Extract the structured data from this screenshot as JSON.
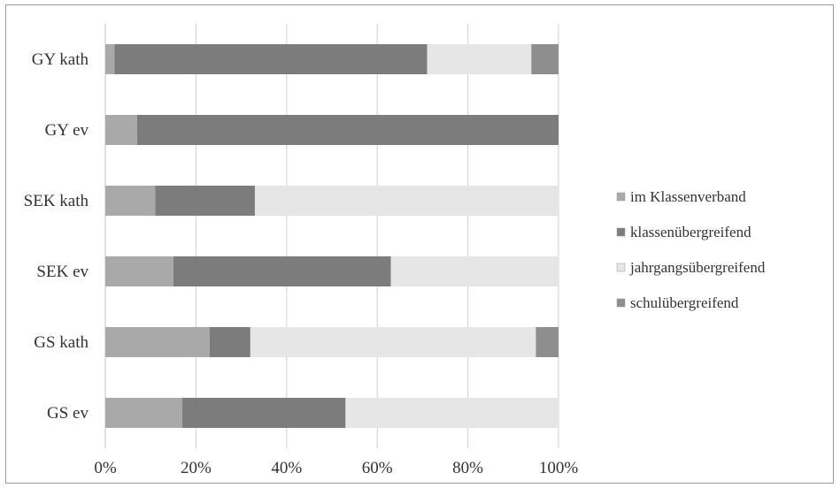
{
  "chart_data": {
    "type": "bar",
    "orientation": "horizontal",
    "stacked": "percent",
    "categories": [
      "GY kath",
      "GY ev",
      "SEK kath",
      "SEK ev",
      "GS kath",
      "GS ev"
    ],
    "series": [
      {
        "name": "im Klassenverband",
        "color": "#a9a9a9",
        "values": [
          2,
          7,
          11,
          15,
          23,
          17
        ]
      },
      {
        "name": "klassenübergreifend",
        "color": "#7c7c7c",
        "values": [
          69,
          93,
          22,
          48,
          9,
          36
        ]
      },
      {
        "name": "jahrgangsübergreifend",
        "color": "#e6e6e6",
        "values": [
          23,
          0,
          67,
          37,
          63,
          47
        ]
      },
      {
        "name": "schulübergreifend",
        "color": "#8e8e8e",
        "values": [
          6,
          0,
          0,
          0,
          5,
          0
        ]
      }
    ],
    "xticks": [
      "0%",
      "20%",
      "40%",
      "60%",
      "80%",
      "100%"
    ],
    "xlim": [
      0,
      100
    ],
    "grid": true,
    "legend": "right"
  }
}
